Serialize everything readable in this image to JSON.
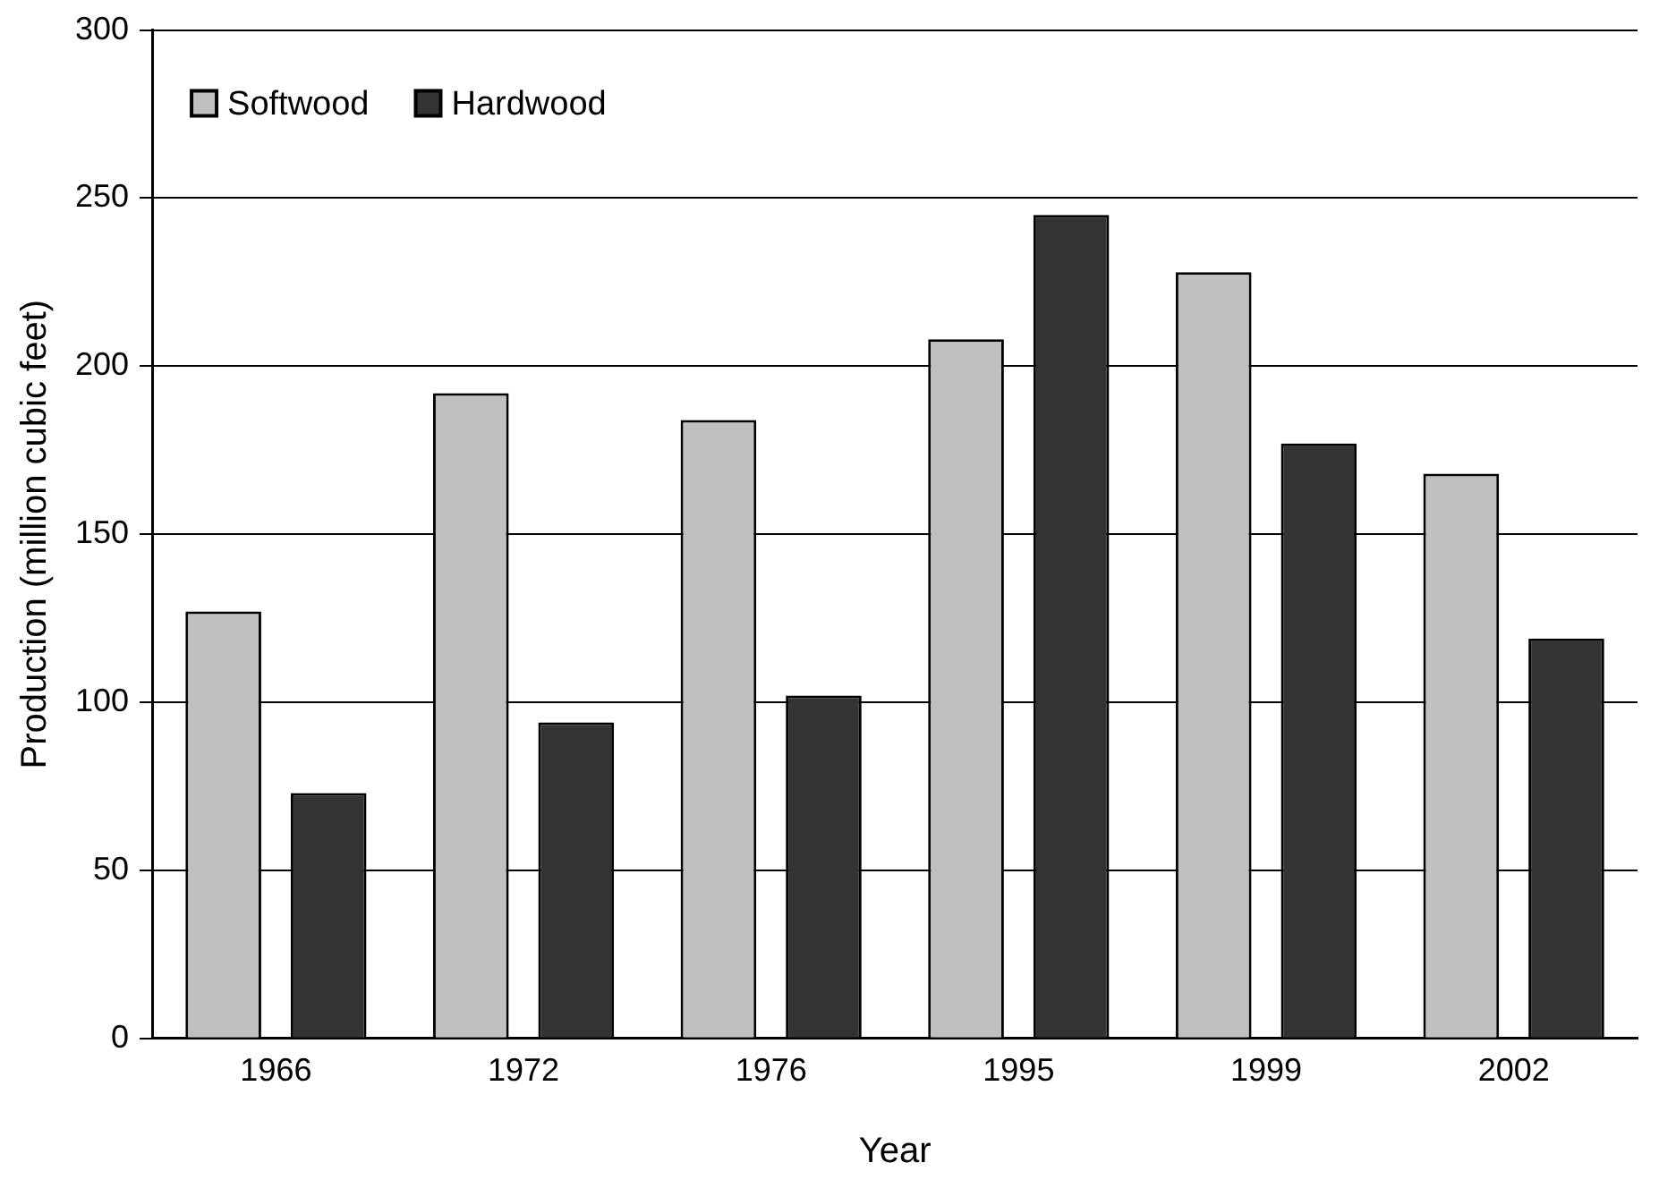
{
  "chart_data": {
    "type": "bar",
    "xlabel": "Year",
    "ylabel": "Production (million cubic feet)",
    "categories": [
      "1966",
      "1972",
      "1976",
      "1995",
      "1999",
      "2002"
    ],
    "series": [
      {
        "name": "Softwood",
        "color": "#c0c0c0",
        "values": [
          127,
          192,
          184,
          208,
          228,
          168
        ]
      },
      {
        "name": "Hardwood",
        "color": "#333333",
        "values": [
          73,
          94,
          102,
          245,
          177,
          119
        ]
      }
    ],
    "ylim": [
      0,
      300
    ],
    "yticks": [
      0,
      50,
      100,
      150,
      200,
      250,
      300
    ],
    "grid": "y",
    "legend": "top left"
  }
}
